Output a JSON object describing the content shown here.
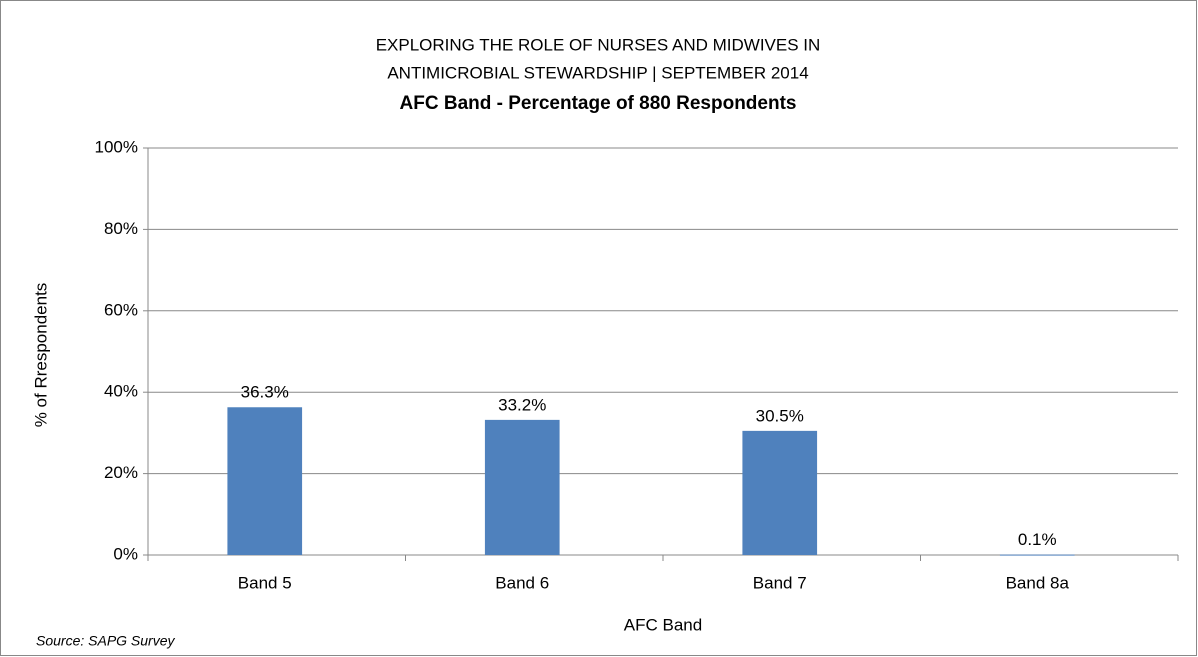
{
  "chart_data": {
    "type": "bar",
    "title_lines": [
      "EXPLORING THE ROLE OF NURSES AND MIDWIVES IN",
      "ANTIMICROBIAL STEWARDSHIP | SEPTEMBER 2014"
    ],
    "subtitle": "AFC Band - Percentage of 880 Respondents",
    "x_label": "AFC Band",
    "y_label": "% of Rrespondents",
    "source": "Source: SAPG Survey",
    "categories": [
      "Band 5",
      "Band 6",
      "Band 7",
      "Band 8a"
    ],
    "values": [
      36.3,
      33.2,
      30.5,
      0.1
    ],
    "value_labels": [
      "36.3%",
      "33.2%",
      "30.5%",
      "0.1%"
    ],
    "color": "#4f81bd",
    "ylim": [
      0,
      100
    ],
    "yticks": [
      {
        "value": 0,
        "label": "0%"
      },
      {
        "value": 20,
        "label": "20%"
      },
      {
        "value": 40,
        "label": "40%"
      },
      {
        "value": 60,
        "label": "60%"
      },
      {
        "value": 80,
        "label": "80%"
      },
      {
        "value": 100,
        "label": "100%"
      }
    ],
    "grid": true
  }
}
